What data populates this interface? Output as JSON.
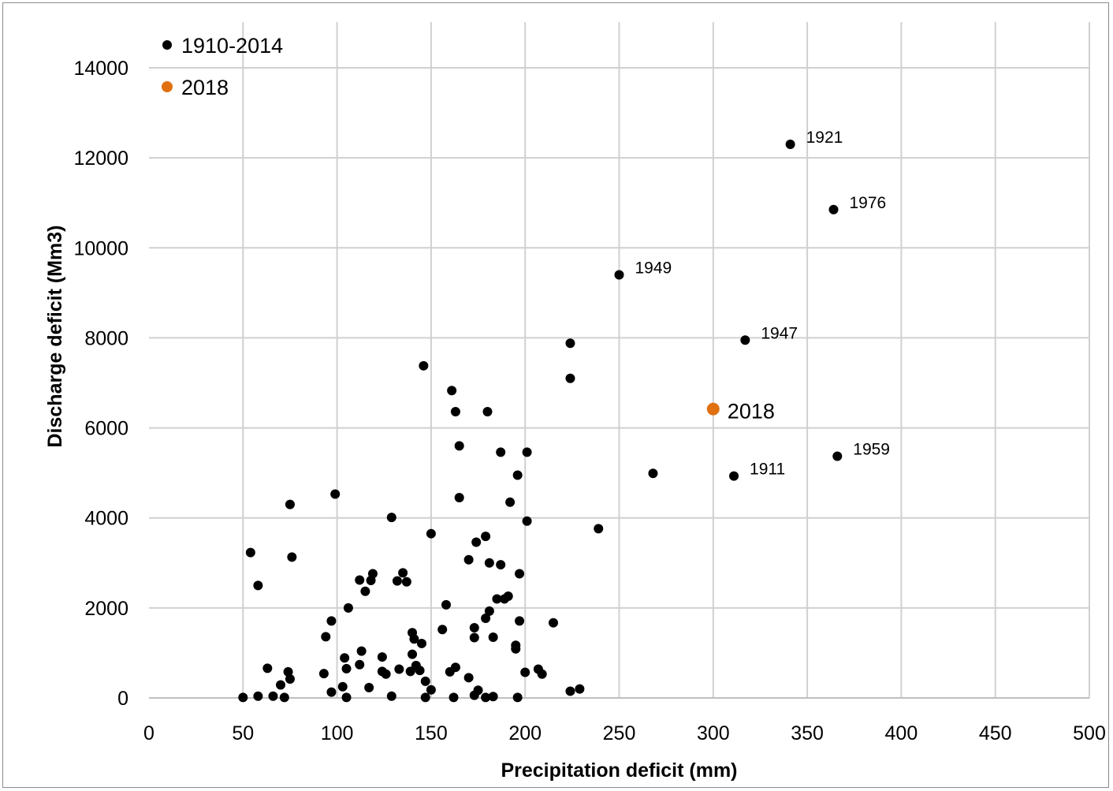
{
  "chart_data": {
    "type": "scatter",
    "xlabel": "Precipitation deficit (mm)",
    "ylabel": "Discharge deficit (Mm3)",
    "xlim": [
      0,
      500
    ],
    "ylim": [
      0,
      14000
    ],
    "x_ticks": [
      0,
      50,
      100,
      150,
      200,
      250,
      300,
      350,
      400,
      450,
      500
    ],
    "y_ticks": [
      0,
      2000,
      4000,
      6000,
      8000,
      10000,
      12000,
      14000
    ],
    "grid": true,
    "legend_position": "top-left",
    "series": [
      {
        "name": "1910-2014",
        "color": "#000000",
        "points": [
          [
            341,
            12300
          ],
          [
            364,
            10850
          ],
          [
            250,
            9400
          ],
          [
            317,
            7950
          ],
          [
            366,
            5370
          ],
          [
            311,
            4930
          ],
          [
            224,
            7880
          ],
          [
            224,
            7100
          ],
          [
            146,
            7380
          ],
          [
            161,
            6830
          ],
          [
            163,
            6360
          ],
          [
            180,
            6360
          ],
          [
            165,
            5600
          ],
          [
            187,
            5460
          ],
          [
            201,
            5460
          ],
          [
            268,
            4990
          ],
          [
            196,
            4950
          ],
          [
            165,
            4450
          ],
          [
            192,
            4350
          ],
          [
            99,
            4530
          ],
          [
            75,
            4300
          ],
          [
            129,
            4010
          ],
          [
            201,
            3930
          ],
          [
            239,
            3760
          ],
          [
            150,
            3650
          ],
          [
            179,
            3590
          ],
          [
            174,
            3460
          ],
          [
            54,
            3230
          ],
          [
            76,
            3130
          ],
          [
            170,
            3070
          ],
          [
            181,
            3000
          ],
          [
            187,
            2960
          ],
          [
            119,
            2760
          ],
          [
            135,
            2780
          ],
          [
            197,
            2760
          ],
          [
            112,
            2620
          ],
          [
            118,
            2610
          ],
          [
            132,
            2600
          ],
          [
            137,
            2580
          ],
          [
            58,
            2500
          ],
          [
            115,
            2370
          ],
          [
            191,
            2260
          ],
          [
            185,
            2200
          ],
          [
            189,
            2200
          ],
          [
            158,
            2070
          ],
          [
            106,
            2000
          ],
          [
            181,
            1930
          ],
          [
            179,
            1770
          ],
          [
            97,
            1710
          ],
          [
            197,
            1710
          ],
          [
            215,
            1670
          ],
          [
            173,
            1560
          ],
          [
            156,
            1520
          ],
          [
            140,
            1450
          ],
          [
            94,
            1360
          ],
          [
            173,
            1340
          ],
          [
            183,
            1350
          ],
          [
            141,
            1310
          ],
          [
            145,
            1210
          ],
          [
            195,
            1170
          ],
          [
            195,
            1090
          ],
          [
            113,
            1040
          ],
          [
            140,
            970
          ],
          [
            104,
            890
          ],
          [
            124,
            910
          ],
          [
            112,
            740
          ],
          [
            142,
            720
          ],
          [
            63,
            660
          ],
          [
            105,
            650
          ],
          [
            133,
            640
          ],
          [
            163,
            680
          ],
          [
            207,
            640
          ],
          [
            124,
            590
          ],
          [
            139,
            590
          ],
          [
            144,
            610
          ],
          [
            160,
            580
          ],
          [
            200,
            570
          ],
          [
            74,
            580
          ],
          [
            93,
            540
          ],
          [
            126,
            530
          ],
          [
            209,
            530
          ],
          [
            170,
            450
          ],
          [
            75,
            420
          ],
          [
            147,
            370
          ],
          [
            70,
            290
          ],
          [
            103,
            250
          ],
          [
            117,
            230
          ],
          [
            150,
            180
          ],
          [
            175,
            170
          ],
          [
            229,
            200
          ],
          [
            224,
            150
          ],
          [
            97,
            130
          ],
          [
            173,
            60
          ],
          [
            129,
            40
          ],
          [
            58,
            40
          ],
          [
            66,
            40
          ],
          [
            183,
            30
          ],
          [
            50,
            10
          ],
          [
            72,
            10
          ],
          [
            105,
            10
          ],
          [
            147,
            10
          ],
          [
            162,
            10
          ],
          [
            179,
            10
          ],
          [
            196,
            10
          ]
        ]
      },
      {
        "name": "2018",
        "color": "#e07010",
        "points": [
          [
            300,
            6420
          ]
        ]
      }
    ],
    "annotations": [
      {
        "text": "1921",
        "x": 341,
        "y": 12300,
        "size": "small"
      },
      {
        "text": "1976",
        "x": 364,
        "y": 10850,
        "size": "small"
      },
      {
        "text": "1949",
        "x": 250,
        "y": 9400,
        "size": "small"
      },
      {
        "text": "1947",
        "x": 317,
        "y": 7950,
        "size": "small"
      },
      {
        "text": "1959",
        "x": 366,
        "y": 5370,
        "size": "small"
      },
      {
        "text": "1911",
        "x": 311,
        "y": 4930,
        "size": "small"
      },
      {
        "text": "2018",
        "x": 300,
        "y": 6420,
        "size": "big"
      }
    ]
  }
}
